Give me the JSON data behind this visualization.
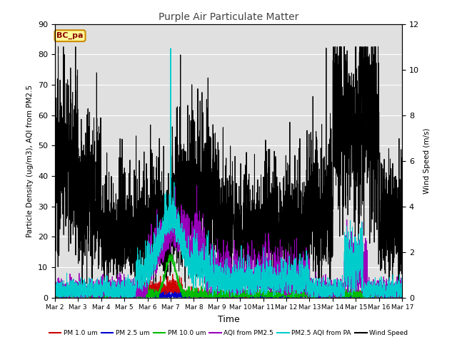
{
  "title": "Purple Air Particulate Matter",
  "xlabel": "Time",
  "ylabel_left": "Particle Density (ug/m3), AQI from PM2.5",
  "ylabel_right": "Wind Speed (m/s)",
  "annotation": "BC_pa",
  "ylim_left": [
    0,
    90
  ],
  "ylim_right": [
    0,
    12
  ],
  "background_color": "#ffffff",
  "plot_bg_color": "#e0e0e0",
  "grid_color": "#ffffff",
  "legend_entries": [
    "PM 1.0 um",
    "PM 2.5 um",
    "PM 10.0 um",
    "AQI from PM2.5",
    "PM2.5 AQI from PA",
    "Wind Speed"
  ],
  "legend_colors": [
    "#cc0000",
    "#0000cc",
    "#00bb00",
    "#9900bb",
    "#00cccc",
    "#000000"
  ],
  "n_points": 3600,
  "xtick_labels": [
    "Mar 2",
    "Mar 3",
    "Mar 4",
    "Mar 5",
    "Mar 6",
    "Mar 7",
    "Mar 8",
    "Mar 9",
    "Mar 10",
    "Mar 11",
    "Mar 12",
    "Mar 13",
    "Mar 14",
    "Mar 15",
    "Mar 16",
    "Mar 17"
  ],
  "yticks_left": [
    0,
    10,
    20,
    30,
    40,
    50,
    60,
    70,
    80,
    90
  ],
  "yticks_right": [
    0,
    2,
    4,
    6,
    8,
    10,
    12
  ]
}
